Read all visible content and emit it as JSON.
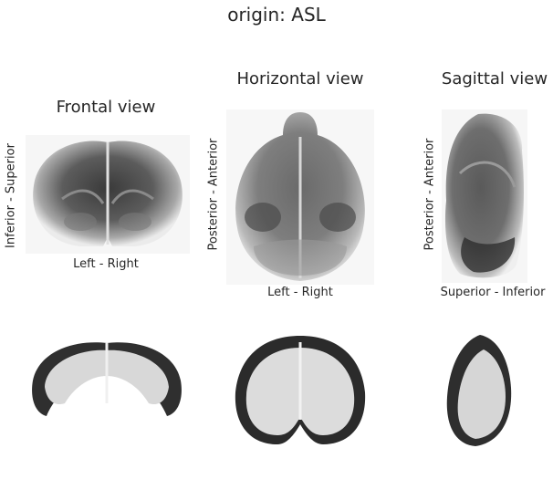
{
  "figure": {
    "suptitle": "origin: ASL",
    "panels": [
      {
        "title": "Frontal view",
        "xlabel": "Left - Right",
        "ylabel": "Inferior - Superior",
        "content": "frontal average brain projection"
      },
      {
        "title": "Horizontal view",
        "xlabel": "Left - Right",
        "ylabel": "Posterior - Anterior",
        "content": "horizontal average brain projection"
      },
      {
        "title": "Sagittal view",
        "xlabel": "Superior - Inferior",
        "ylabel": "Posterior - Anterior",
        "content": "sagittal average brain projection"
      }
    ],
    "bottom_row": [
      {
        "content": "frontal cortex mask projection"
      },
      {
        "content": "horizontal cortex mask projection"
      },
      {
        "content": "sagittal cortex mask projection"
      }
    ],
    "colors": {
      "text": "#262626",
      "background": "#ffffff"
    }
  }
}
